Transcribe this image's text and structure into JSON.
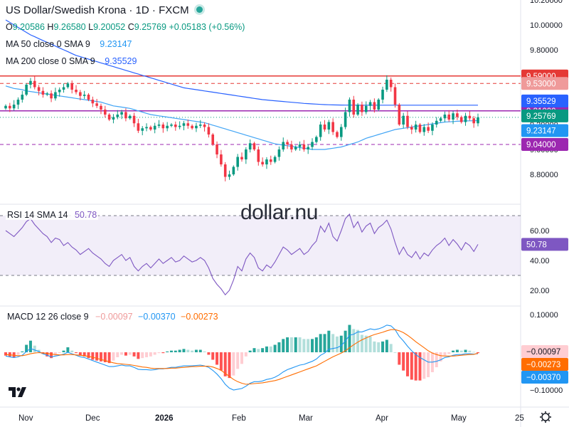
{
  "header": {
    "title": "US Dollar/Swedish Krona · 1D · FXCM",
    "ohlc": [
      {
        "k": "O",
        "v": "9.20586"
      },
      {
        "k": "H",
        "v": "9.26580"
      },
      {
        "k": "L",
        "v": "9.20052"
      },
      {
        "k": "C",
        "v": "9.25769"
      },
      {
        "k": "",
        "v": "+0.05183 (+0.56%)"
      }
    ],
    "ma50_label": "MA 50 close 0 SMA 9",
    "ma50_value": "9.23147",
    "ma200_label": "MA 200 close 0 SMA 9",
    "ma200_value": "9.35529"
  },
  "watermark": "dollar.nu",
  "colors": {
    "up": "#089981",
    "down": "#f23645",
    "ma50": "#2196f3",
    "ma200": "#2962ff",
    "level_red": "#e53935",
    "level_purple": "#9c27b0",
    "rsi": "#7e57c2",
    "macd": "#2196f3",
    "signal": "#ff6d00"
  },
  "rsi": {
    "label": "RSI 14 SMA 14",
    "value": "50.78",
    "ticks": [
      "60.00",
      "40.00",
      "20.00"
    ]
  },
  "macd": {
    "label": "MACD 12 26 close 9",
    "hist": "−0.00097",
    "macd": "−0.00370",
    "signal": "−0.00273",
    "ticks": [
      "0.10000",
      "0.00000",
      "−0.10000"
    ]
  },
  "chart_data": {
    "type": "candlestick",
    "title": "US Dollar/Swedish Krona · 1D · FXCM",
    "price_axis_ticks": [
      "10.20000",
      "10.00000",
      "9.80000",
      "9.60000",
      "9.40000",
      "9.20000",
      "9.00000",
      "8.80000"
    ],
    "ylim": [
      8.7,
      10.2
    ],
    "x_labels": [
      "Nov",
      "Dec",
      "2026",
      "Feb",
      "Mar",
      "Apr",
      "May",
      "25"
    ],
    "levels": [
      {
        "value": 9.59,
        "label": "9.59000",
        "style": "solid",
        "color": "red"
      },
      {
        "value": 9.53,
        "label": "9.53000",
        "style": "dashed",
        "color": "red"
      },
      {
        "value": 9.31,
        "label": "9.31000",
        "style": "solid",
        "color": "purple"
      },
      {
        "value": 9.04,
        "label": "9.04000",
        "style": "dashed",
        "color": "purple"
      }
    ],
    "price_labels": [
      {
        "label": "9.35529",
        "value": 9.35529,
        "kind": "ma200"
      },
      {
        "label": "9.25769",
        "value": 9.25769,
        "kind": "last"
      },
      {
        "label": "9.23147",
        "value": 9.23147,
        "kind": "ma50"
      }
    ],
    "close": [
      9.35,
      9.33,
      9.36,
      9.4,
      9.44,
      9.52,
      9.55,
      9.5,
      9.47,
      9.44,
      9.45,
      9.41,
      9.46,
      9.48,
      9.5,
      9.53,
      9.48,
      9.46,
      9.43,
      9.44,
      9.4,
      9.37,
      9.35,
      9.32,
      9.28,
      9.24,
      9.26,
      9.28,
      9.3,
      9.25,
      9.27,
      9.21,
      9.15,
      9.17,
      9.18,
      9.16,
      9.19,
      9.2,
      9.17,
      9.19,
      9.2,
      9.18,
      9.19,
      9.21,
      9.19,
      9.17,
      9.19,
      9.2,
      9.18,
      9.12,
      9.04,
      8.96,
      8.88,
      8.78,
      8.8,
      8.86,
      8.94,
      8.92,
      9.0,
      9.05,
      9.0,
      8.9,
      8.88,
      8.92,
      8.9,
      8.94,
      9.0,
      9.06,
      9.04,
      9.0,
      9.02,
      9.04,
      9.0,
      9.02,
      9.06,
      9.1,
      9.2,
      9.16,
      9.22,
      9.14,
      9.1,
      9.18,
      9.3,
      9.4,
      9.28,
      9.36,
      9.3,
      9.35,
      9.38,
      9.32,
      9.4,
      9.48,
      9.56,
      9.5,
      9.36,
      9.2,
      9.27,
      9.18,
      9.16,
      9.2,
      9.14,
      9.18,
      9.15,
      9.2,
      9.23,
      9.25,
      9.28,
      9.24,
      9.29,
      9.26,
      9.22,
      9.27,
      9.25,
      9.21,
      9.258
    ],
    "ma50": [
      9.51,
      9.5,
      9.49,
      9.485,
      9.48,
      9.47,
      9.465,
      9.46,
      9.455,
      9.45,
      9.445,
      9.44,
      9.435,
      9.43,
      9.425,
      9.42,
      9.415,
      9.41,
      9.405,
      9.4,
      9.395,
      9.39,
      9.385,
      9.38,
      9.37,
      9.36,
      9.35,
      9.345,
      9.34,
      9.335,
      9.33,
      9.32,
      9.31,
      9.3,
      9.29,
      9.28,
      9.275,
      9.27,
      9.265,
      9.26,
      9.255,
      9.25,
      9.245,
      9.24,
      9.235,
      9.23,
      9.225,
      9.22,
      9.215,
      9.205,
      9.195,
      9.185,
      9.175,
      9.165,
      9.155,
      9.145,
      9.135,
      9.125,
      9.115,
      9.105,
      9.095,
      9.085,
      9.075,
      9.065,
      9.055,
      9.045,
      9.04,
      9.035,
      9.03,
      9.025,
      9.02,
      9.015,
      9.01,
      9.005,
      9.0,
      9.0,
      9.0,
      9.0,
      9.005,
      9.01,
      9.015,
      9.02,
      9.03,
      9.04,
      9.05,
      9.06,
      9.075,
      9.09,
      9.1,
      9.11,
      9.12,
      9.13,
      9.14,
      9.15,
      9.16,
      9.165,
      9.17,
      9.175,
      9.18,
      9.185,
      9.19,
      9.195,
      9.2,
      9.205,
      9.21,
      9.215,
      9.22,
      9.222,
      9.224,
      9.226,
      9.228,
      9.229,
      9.23,
      9.231,
      9.2315
    ],
    "ma200": [
      10.04,
      10.02,
      10.0,
      9.98,
      9.96,
      9.94,
      9.92,
      9.905,
      9.89,
      9.875,
      9.86,
      9.845,
      9.83,
      9.815,
      9.8,
      9.785,
      9.77,
      9.755,
      9.745,
      9.735,
      9.725,
      9.715,
      9.705,
      9.695,
      9.685,
      9.675,
      9.665,
      9.655,
      9.645,
      9.635,
      9.625,
      9.615,
      9.605,
      9.595,
      9.585,
      9.575,
      9.565,
      9.555,
      9.545,
      9.535,
      9.525,
      9.515,
      9.505,
      9.495,
      9.49,
      9.485,
      9.48,
      9.475,
      9.47,
      9.465,
      9.46,
      9.455,
      9.45,
      9.445,
      9.44,
      9.435,
      9.43,
      9.425,
      9.42,
      9.415,
      9.41,
      9.405,
      9.4,
      9.397,
      9.394,
      9.391,
      9.388,
      9.385,
      9.382,
      9.379,
      9.376,
      9.373,
      9.37,
      9.368,
      9.366,
      9.364,
      9.362,
      9.36,
      9.359,
      9.358,
      9.357,
      9.3565,
      9.356,
      9.3558,
      9.3556,
      9.3555,
      9.3554,
      9.3553,
      9.3553,
      9.3553,
      9.3553,
      9.3553,
      9.3553,
      9.3553,
      9.3553,
      9.3553,
      9.3553,
      9.3553,
      9.3553,
      9.3553,
      9.3553,
      9.3553,
      9.3553,
      9.3553,
      9.3553,
      9.3553,
      9.3553,
      9.3553,
      9.3553,
      9.3553,
      9.3553,
      9.3553,
      9.3553,
      9.3553,
      9.35529
    ],
    "rsi_values": [
      60,
      58,
      56,
      59,
      62,
      66,
      68,
      64,
      61,
      58,
      56,
      52,
      55,
      54,
      50,
      52,
      49,
      47,
      44,
      46,
      48,
      45,
      43,
      41,
      38,
      36,
      40,
      42,
      44,
      40,
      42,
      36,
      33,
      36,
      38,
      35,
      38,
      41,
      38,
      40,
      42,
      39,
      40,
      43,
      41,
      39,
      40,
      42,
      40,
      35,
      28,
      24,
      21,
      17,
      20,
      27,
      36,
      33,
      41,
      45,
      42,
      35,
      33,
      37,
      35,
      39,
      44,
      49,
      47,
      44,
      46,
      48,
      44,
      46,
      50,
      53,
      63,
      59,
      65,
      56,
      53,
      60,
      68,
      71,
      62,
      66,
      59,
      63,
      65,
      58,
      62,
      64,
      67,
      61,
      52,
      44,
      49,
      44,
      42,
      46,
      41,
      45,
      43,
      47,
      50,
      52,
      55,
      50,
      54,
      51,
      47,
      52,
      50,
      46,
      50.78
    ],
    "macd_values": [
      -0.01,
      -0.012,
      -0.014,
      -0.012,
      -0.008,
      0.002,
      0.01,
      0.006,
      0.002,
      -0.004,
      -0.008,
      -0.012,
      -0.01,
      -0.008,
      -0.005,
      0.0,
      -0.004,
      -0.008,
      -0.012,
      -0.014,
      -0.018,
      -0.022,
      -0.026,
      -0.03,
      -0.034,
      -0.038,
      -0.038,
      -0.036,
      -0.034,
      -0.036,
      -0.036,
      -0.04,
      -0.045,
      -0.046,
      -0.046,
      -0.047,
      -0.046,
      -0.044,
      -0.044,
      -0.042,
      -0.04,
      -0.04,
      -0.038,
      -0.036,
      -0.036,
      -0.036,
      -0.035,
      -0.034,
      -0.036,
      -0.04,
      -0.048,
      -0.058,
      -0.07,
      -0.085,
      -0.095,
      -0.1,
      -0.098,
      -0.096,
      -0.09,
      -0.082,
      -0.078,
      -0.078,
      -0.076,
      -0.072,
      -0.07,
      -0.066,
      -0.06,
      -0.052,
      -0.046,
      -0.042,
      -0.038,
      -0.034,
      -0.032,
      -0.028,
      -0.024,
      -0.018,
      -0.008,
      -0.002,
      0.008,
      0.01,
      0.012,
      0.018,
      0.03,
      0.045,
      0.048,
      0.054,
      0.054,
      0.058,
      0.062,
      0.06,
      0.062,
      0.066,
      0.072,
      0.07,
      0.06,
      0.042,
      0.03,
      0.016,
      0.004,
      -0.006,
      -0.014,
      -0.02,
      -0.026,
      -0.026,
      -0.024,
      -0.02,
      -0.014,
      -0.012,
      -0.008,
      -0.006,
      -0.006,
      -0.004,
      -0.004,
      -0.005,
      -0.0037
    ],
    "signal_values": [
      -0.006,
      -0.007,
      -0.008,
      -0.009,
      -0.009,
      -0.007,
      -0.004,
      -0.002,
      -0.001,
      -0.002,
      -0.003,
      -0.005,
      -0.006,
      -0.007,
      -0.007,
      -0.006,
      -0.006,
      -0.007,
      -0.008,
      -0.009,
      -0.011,
      -0.013,
      -0.016,
      -0.019,
      -0.022,
      -0.025,
      -0.028,
      -0.03,
      -0.031,
      -0.032,
      -0.033,
      -0.035,
      -0.037,
      -0.039,
      -0.04,
      -0.042,
      -0.043,
      -0.043,
      -0.043,
      -0.043,
      -0.042,
      -0.042,
      -0.041,
      -0.04,
      -0.039,
      -0.038,
      -0.038,
      -0.037,
      -0.037,
      -0.037,
      -0.039,
      -0.043,
      -0.048,
      -0.056,
      -0.064,
      -0.072,
      -0.078,
      -0.082,
      -0.085,
      -0.084,
      -0.083,
      -0.082,
      -0.081,
      -0.079,
      -0.077,
      -0.075,
      -0.072,
      -0.068,
      -0.064,
      -0.06,
      -0.056,
      -0.052,
      -0.048,
      -0.044,
      -0.04,
      -0.036,
      -0.03,
      -0.024,
      -0.018,
      -0.012,
      -0.007,
      -0.002,
      0.004,
      0.012,
      0.02,
      0.027,
      0.033,
      0.038,
      0.043,
      0.047,
      0.05,
      0.053,
      0.057,
      0.06,
      0.06,
      0.057,
      0.052,
      0.045,
      0.037,
      0.028,
      0.02,
      0.012,
      0.004,
      -0.002,
      -0.006,
      -0.009,
      -0.01,
      -0.01,
      -0.01,
      -0.009,
      -0.008,
      -0.007,
      -0.006,
      -0.0055,
      -0.0027
    ]
  }
}
